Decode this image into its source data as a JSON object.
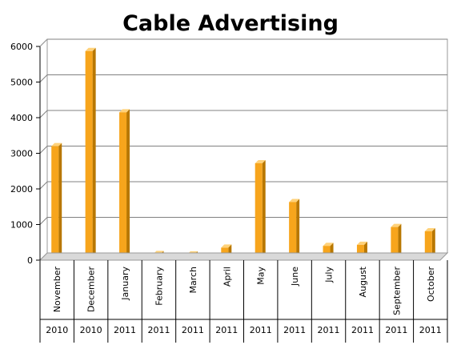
{
  "chart_data": {
    "type": "bar",
    "title": "Cable Advertising",
    "categories": [
      "November",
      "December",
      "January",
      "February",
      "March",
      "April",
      "May",
      "June",
      "July",
      "August",
      "September",
      "October"
    ],
    "years": [
      "2010",
      "2010",
      "2011",
      "2011",
      "2011",
      "2011",
      "2011",
      "2011",
      "2011",
      "2011",
      "2011",
      "2011"
    ],
    "values": [
      3200,
      5870,
      4150,
      170,
      160,
      350,
      2720,
      1630,
      400,
      430,
      930,
      810
    ],
    "yticks": [
      0,
      1000,
      2000,
      3000,
      4000,
      5000,
      6000
    ],
    "ylim": [
      0,
      6000
    ],
    "grid": true,
    "colors": {
      "bar_front": "#f7a51c",
      "bar_side": "#b87700",
      "bar_top": "#ffd27a",
      "grid": "#808080"
    }
  }
}
